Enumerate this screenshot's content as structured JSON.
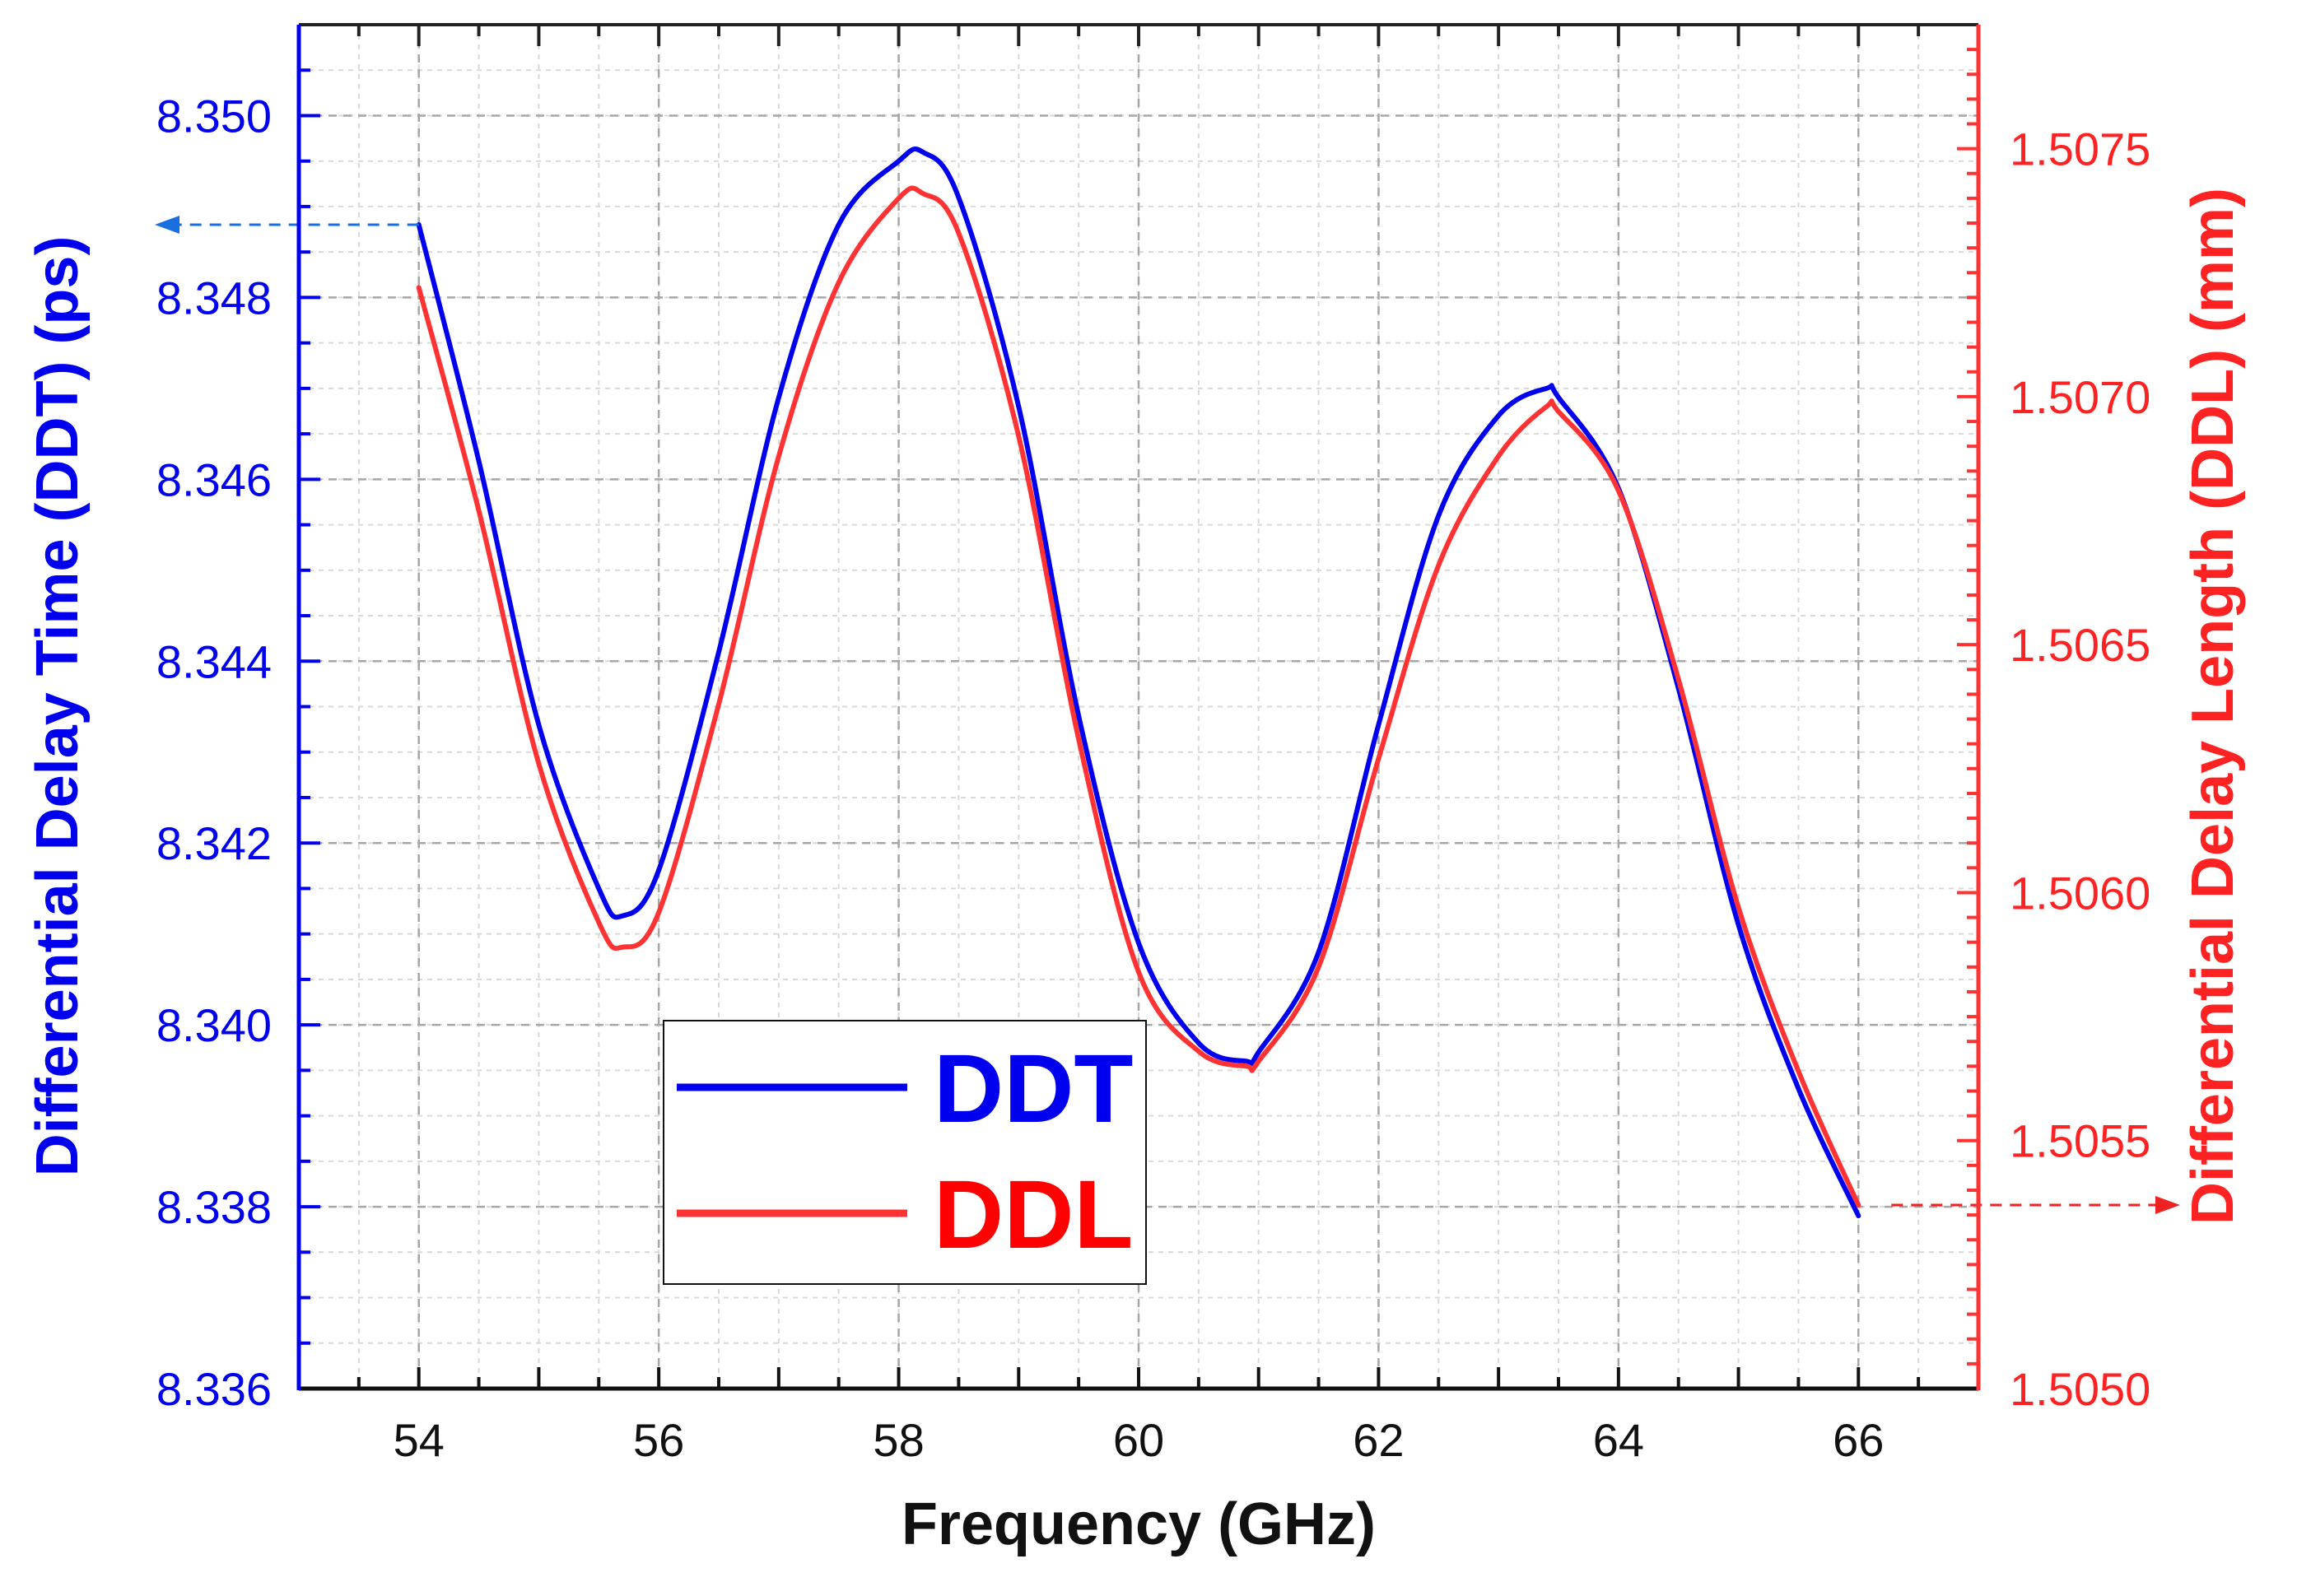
{
  "chart_data": {
    "type": "line",
    "xlabel": "Frequency (GHz)",
    "ylabel": "Differential Delay Time (DDT) (ps)",
    "y2label": "Differential Delay Length (DDL) (mm)",
    "xlim": [
      53,
      67
    ],
    "ylim": [
      8.336,
      8.351
    ],
    "y2lim": [
      1.505,
      1.50775
    ],
    "xticks": [
      "54",
      "56",
      "58",
      "60",
      "62",
      "64",
      "66"
    ],
    "yticks": [
      "8.336",
      "8.338",
      "8.340",
      "8.342",
      "8.344",
      "8.346",
      "8.348",
      "8.350"
    ],
    "y2ticks": [
      "1.5050",
      "1.5055",
      "1.5060",
      "1.5065",
      "1.5070",
      "1.5075"
    ],
    "grid": true,
    "legend_position": "bottom-center",
    "series": [
      {
        "name": "DDT",
        "axis": "left",
        "color": "#0000ee",
        "x": [
          54.0,
          54.5,
          55.0,
          55.5,
          55.7,
          56.0,
          56.5,
          57.0,
          57.5,
          58.0,
          58.2,
          58.5,
          59.0,
          59.5,
          60.0,
          60.5,
          60.9,
          61.0,
          61.5,
          62.0,
          62.5,
          63.0,
          63.4,
          63.5,
          64.0,
          64.5,
          65.0,
          65.5,
          66.0
        ],
        "values": [
          8.3488,
          8.3462,
          8.3433,
          8.3415,
          8.3412,
          8.3417,
          8.3441,
          8.3469,
          8.3488,
          8.3495,
          8.3496,
          8.3491,
          8.3468,
          8.3434,
          8.3409,
          8.3398,
          8.3396,
          8.3397,
          8.3408,
          8.3433,
          8.3456,
          8.3467,
          8.347,
          8.3469,
          8.3459,
          8.3437,
          8.3411,
          8.3393,
          8.3379
        ]
      },
      {
        "name": "DDL",
        "axis": "right",
        "color": "#ff3333",
        "x": [
          54.0,
          54.5,
          55.0,
          55.5,
          55.7,
          56.0,
          56.5,
          57.0,
          57.5,
          58.0,
          58.2,
          58.5,
          59.0,
          59.5,
          60.0,
          60.5,
          60.9,
          61.0,
          61.5,
          62.0,
          62.5,
          63.0,
          63.4,
          63.5,
          64.0,
          64.5,
          65.0,
          65.5,
          66.0
        ],
        "values": [
          1.50722,
          1.50677,
          1.50626,
          1.50594,
          1.50589,
          1.50596,
          1.50638,
          1.50688,
          1.50723,
          1.5074,
          1.50741,
          1.50733,
          1.50692,
          1.50631,
          1.50584,
          1.50568,
          1.50565,
          1.50566,
          1.50585,
          1.50627,
          1.50666,
          1.50688,
          1.50698,
          1.50697,
          1.50681,
          1.50643,
          1.50597,
          1.50564,
          1.50537
        ]
      }
    ],
    "annotations": [
      {
        "type": "arrow",
        "direction": "left",
        "axis": "left",
        "color": "#1a6fe0"
      },
      {
        "type": "arrow",
        "direction": "right",
        "axis": "right",
        "color": "#ee2222"
      }
    ]
  }
}
